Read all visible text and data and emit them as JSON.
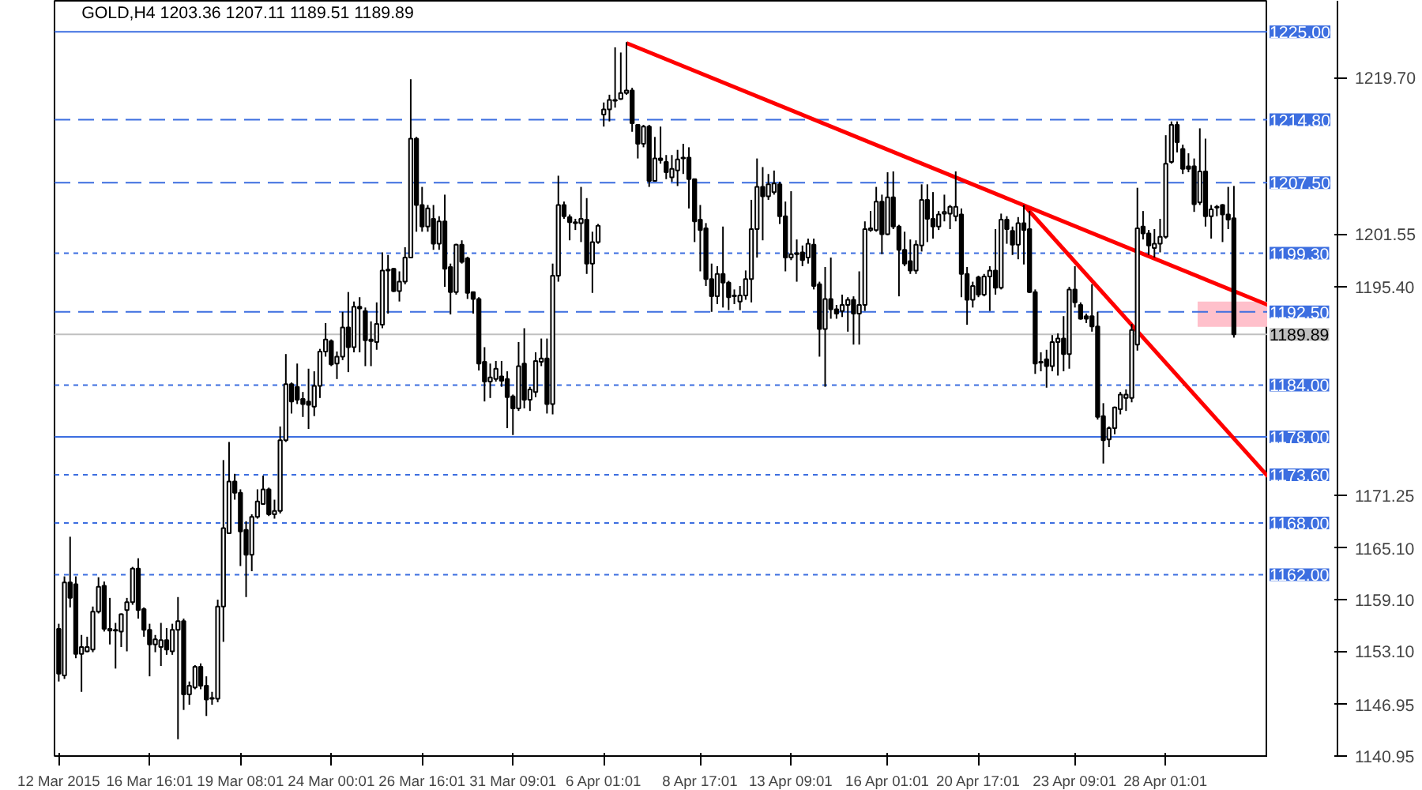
{
  "chart_data": {
    "type": "candlestick",
    "title": "GOLD,H4  1203.36 1207.11 1189.51 1189.89",
    "categories": [
      "12 Mar 2015",
      null,
      null,
      null,
      null,
      null,
      null,
      null,
      null,
      null,
      null,
      null,
      null,
      null,
      null,
      null,
      "16 Mar 16:01",
      null,
      null,
      null,
      null,
      null,
      null,
      null,
      null,
      null,
      null,
      null,
      null,
      null,
      null,
      null,
      "19 Mar 08:01",
      null,
      null,
      null,
      null,
      null,
      null,
      null,
      null,
      null,
      null,
      null,
      null,
      null,
      null,
      null,
      "24 Mar 00:01",
      null,
      null,
      null,
      null,
      null,
      null,
      null,
      null,
      null,
      null,
      null,
      null,
      null,
      null,
      null,
      "26 Mar 16:01",
      null,
      null,
      null,
      null,
      null,
      null,
      null,
      null,
      null,
      null,
      null,
      null,
      null,
      null,
      null,
      "31 Mar 09:01",
      null,
      null,
      null,
      null,
      null,
      null,
      null,
      null,
      null,
      null,
      null,
      null,
      null,
      null,
      null,
      "6 Apr 01:01",
      null,
      null,
      null,
      null,
      null,
      null,
      null,
      null,
      null,
      null,
      null,
      null,
      null,
      null,
      null,
      null,
      "8 Apr 17:01",
      null,
      null,
      null,
      null,
      null,
      null,
      null,
      null,
      null,
      null,
      null,
      null,
      null,
      null,
      null,
      "13 Apr 09:01",
      null,
      null,
      null,
      null,
      null,
      null,
      null,
      null,
      null,
      null,
      null,
      null,
      null,
      null,
      null,
      null,
      "16 Apr 01:01",
      null,
      null,
      null,
      null,
      null,
      null,
      null,
      null,
      null,
      null,
      null,
      null,
      null,
      null,
      null,
      "20 Apr 17:01",
      null,
      null,
      null,
      null,
      null,
      null,
      null,
      null,
      null,
      null,
      null,
      null,
      null,
      null,
      null,
      null,
      "23 Apr 09:01",
      null,
      null,
      null,
      null,
      null,
      null,
      null,
      null,
      null,
      null,
      null,
      null,
      null,
      null,
      null,
      "28 Apr 01:01",
      null,
      null,
      null,
      null,
      null,
      null,
      null,
      null,
      null,
      null,
      null,
      null,
      null,
      null,
      null,
      null,
      null,
      null
    ],
    "ohlc": [
      [
        1155.7,
        1156.3,
        1149.6,
        1150.5
      ],
      [
        1150.3,
        1161.8,
        1149.9,
        1161.1
      ],
      [
        1161.1,
        1166.4,
        1158.2,
        1159.3
      ],
      [
        1160.9,
        1161.8,
        1152.3,
        1152.8
      ],
      [
        1152.8,
        1155.0,
        1148.4,
        1153.6
      ],
      [
        1153.1,
        1154.8,
        1153.0,
        1153.6
      ],
      [
        1153.3,
        1158.3,
        1153.0,
        1157.7
      ],
      [
        1157.7,
        1161.7,
        1157.5,
        1160.6
      ],
      [
        1160.7,
        1161.2,
        1155.4,
        1155.7
      ],
      [
        1155.7,
        1159.3,
        1153.9,
        1155.5
      ],
      [
        1155.5,
        1156.4,
        1151.1,
        1155.6
      ],
      [
        1155.4,
        1157.5,
        1153.6,
        1157.4
      ],
      [
        1157.9,
        1159.3,
        1153.1,
        1158.8
      ],
      [
        1158.8,
        1162.9,
        1158.5,
        1162.7
      ],
      [
        1162.7,
        1163.9,
        1156.9,
        1157.9
      ],
      [
        1158.0,
        1158.2,
        1154.8,
        1155.6
      ],
      [
        1155.6,
        1156.3,
        1150.2,
        1153.9
      ],
      [
        1153.9,
        1155.0,
        1153.0,
        1154.5
      ],
      [
        1153.6,
        1156.4,
        1151.4,
        1154.4
      ],
      [
        1154.4,
        1155.8,
        1152.7,
        1153.3
      ],
      [
        1153.1,
        1156.3,
        1152.7,
        1155.6
      ],
      [
        1155.6,
        1159.4,
        1142.9,
        1156.6
      ],
      [
        1156.6,
        1156.9,
        1146.3,
        1148.1
      ],
      [
        1148.1,
        1149.6,
        1146.9,
        1149.1
      ],
      [
        1148.9,
        1151.5,
        1148.7,
        1151.3
      ],
      [
        1151.3,
        1151.7,
        1148.7,
        1149.1
      ],
      [
        1149.1,
        1150.2,
        1145.6,
        1147.5
      ],
      [
        1147.7,
        1148.4,
        1146.9,
        1147.6
      ],
      [
        1147.6,
        1159.1,
        1147.2,
        1158.3
      ],
      [
        1158.3,
        1175.3,
        1154.2,
        1167.4
      ],
      [
        1166.8,
        1177.4,
        1166.8,
        1172.8
      ],
      [
        1172.8,
        1173.7,
        1170.7,
        1171.5
      ],
      [
        1171.5,
        1171.9,
        1163.0,
        1167.0
      ],
      [
        1167.2,
        1168.2,
        1159.4,
        1164.3
      ],
      [
        1164.3,
        1169.0,
        1162.4,
        1168.7
      ],
      [
        1168.7,
        1171.9,
        1168.5,
        1170.5
      ],
      [
        1170.2,
        1173.5,
        1170.1,
        1171.9
      ],
      [
        1171.9,
        1172.1,
        1168.8,
        1169.0
      ],
      [
        1169.0,
        1170.7,
        1168.5,
        1169.4
      ],
      [
        1169.4,
        1179.2,
        1169.1,
        1177.6
      ],
      [
        1177.6,
        1187.6,
        1177.4,
        1184.1
      ],
      [
        1184.1,
        1184.3,
        1180.7,
        1182.1
      ],
      [
        1183.8,
        1186.5,
        1181.8,
        1182.3
      ],
      [
        1182.4,
        1183.2,
        1180.3,
        1181.8
      ],
      [
        1182.1,
        1185.9,
        1178.9,
        1181.7
      ],
      [
        1181.5,
        1185.6,
        1180.4,
        1183.9
      ],
      [
        1183.9,
        1188.2,
        1182.5,
        1187.9
      ],
      [
        1187.9,
        1191.2,
        1187.3,
        1189.3
      ],
      [
        1189.1,
        1189.3,
        1186.2,
        1186.4
      ],
      [
        1186.5,
        1187.9,
        1184.7,
        1187.3
      ],
      [
        1187.3,
        1192.5,
        1186.9,
        1190.7
      ],
      [
        1190.7,
        1194.8,
        1185.5,
        1188.4
      ],
      [
        1188.4,
        1193.7,
        1187.8,
        1193.1
      ],
      [
        1193.1,
        1194.2,
        1187.8,
        1192.9
      ],
      [
        1192.6,
        1193.0,
        1186.2,
        1189.2
      ],
      [
        1189.3,
        1191.4,
        1186.2,
        1189.1
      ],
      [
        1189.0,
        1193.6,
        1188.1,
        1191.1
      ],
      [
        1191.0,
        1199.4,
        1190.6,
        1197.3
      ],
      [
        1197.3,
        1199.1,
        1192.3,
        1197.4
      ],
      [
        1197.5,
        1197.6,
        1194.8,
        1194.9
      ],
      [
        1194.9,
        1197.2,
        1193.7,
        1196.0
      ],
      [
        1196.0,
        1200.0,
        1195.7,
        1198.8
      ],
      [
        1198.8,
        1219.5,
        1198.8,
        1212.6
      ],
      [
        1212.6,
        1212.8,
        1201.8,
        1204.9
      ],
      [
        1204.9,
        1207.0,
        1201.8,
        1202.4
      ],
      [
        1202.4,
        1204.9,
        1201.8,
        1204.5
      ],
      [
        1203.3,
        1204.9,
        1199.7,
        1200.4
      ],
      [
        1200.4,
        1203.6,
        1199.7,
        1203.0
      ],
      [
        1203.0,
        1206.1,
        1195.4,
        1197.5
      ],
      [
        1197.7,
        1198.1,
        1192.2,
        1194.8
      ],
      [
        1194.8,
        1200.4,
        1194.5,
        1200.3
      ],
      [
        1200.3,
        1200.8,
        1198.1,
        1198.3
      ],
      [
        1198.7,
        1198.9,
        1194.0,
        1194.7
      ],
      [
        1194.8,
        1194.8,
        1192.3,
        1194.0
      ],
      [
        1194.0,
        1194.2,
        1185.7,
        1186.5
      ],
      [
        1186.7,
        1188.4,
        1182.1,
        1184.4
      ],
      [
        1184.4,
        1186.5,
        1182.5,
        1184.9
      ],
      [
        1184.7,
        1186.8,
        1184.4,
        1185.9
      ],
      [
        1185.0,
        1186.8,
        1183.8,
        1184.5
      ],
      [
        1184.7,
        1185.6,
        1179.0,
        1182.6
      ],
      [
        1182.7,
        1182.9,
        1178.2,
        1181.3
      ],
      [
        1181.3,
        1189.0,
        1181.0,
        1186.2
      ],
      [
        1186.5,
        1190.6,
        1181.3,
        1182.3
      ],
      [
        1182.3,
        1183.8,
        1181.0,
        1183.5
      ],
      [
        1183.2,
        1187.8,
        1182.6,
        1186.8
      ],
      [
        1186.7,
        1189.4,
        1186.2,
        1187.1
      ],
      [
        1187.1,
        1189.4,
        1180.7,
        1181.8
      ],
      [
        1181.8,
        1198.1,
        1180.6,
        1196.7
      ],
      [
        1196.7,
        1208.3,
        1196.0,
        1204.9
      ],
      [
        1204.9,
        1205.3,
        1203.3,
        1203.6
      ],
      [
        1203.5,
        1203.8,
        1200.8,
        1202.9
      ],
      [
        1202.9,
        1203.3,
        1202.0,
        1202.8
      ],
      [
        1202.8,
        1207.0,
        1200.6,
        1203.3
      ],
      [
        1203.2,
        1205.7,
        1196.9,
        1198.1
      ],
      [
        1198.1,
        1201.8,
        1194.7,
        1200.6
      ],
      [
        1200.6,
        1202.7,
        1200.4,
        1202.5
      ],
      [
        1215.4,
        1216.8,
        1214.0,
        1216.0
      ],
      [
        1216.0,
        1217.7,
        1214.6,
        1217.1
      ],
      [
        1217.0,
        1223.2,
        1216.2,
        1217.1
      ],
      [
        1217.2,
        1222.6,
        1217.1,
        1217.9
      ],
      [
        1217.9,
        1223.8,
        1217.7,
        1218.2
      ],
      [
        1218.2,
        1218.5,
        1213.4,
        1214.4
      ],
      [
        1214.2,
        1214.3,
        1210.3,
        1212.0
      ],
      [
        1212.0,
        1214.2,
        1211.6,
        1214.0
      ],
      [
        1214.0,
        1214.2,
        1207.0,
        1207.7
      ],
      [
        1207.7,
        1212.8,
        1207.6,
        1210.3
      ],
      [
        1210.3,
        1214.0,
        1209.7,
        1210.1
      ],
      [
        1209.9,
        1210.7,
        1207.9,
        1208.7
      ],
      [
        1208.1,
        1210.7,
        1207.6,
        1209.1
      ],
      [
        1208.9,
        1211.3,
        1207.1,
        1210.2
      ],
      [
        1210.3,
        1212.0,
        1208.5,
        1210.4
      ],
      [
        1210.4,
        1211.6,
        1204.5,
        1207.9
      ],
      [
        1207.9,
        1207.9,
        1200.6,
        1203.0
      ],
      [
        1203.2,
        1204.9,
        1197.2,
        1202.0
      ],
      [
        1202.2,
        1202.8,
        1195.5,
        1196.3
      ],
      [
        1196.3,
        1198.1,
        1192.5,
        1194.3
      ],
      [
        1194.3,
        1197.8,
        1193.4,
        1196.9
      ],
      [
        1196.9,
        1202.4,
        1193.0,
        1195.9
      ],
      [
        1195.9,
        1196.1,
        1192.7,
        1194.2
      ],
      [
        1194.3,
        1195.1,
        1193.4,
        1194.4
      ],
      [
        1193.7,
        1195.5,
        1192.7,
        1194.4
      ],
      [
        1194.4,
        1197.3,
        1193.9,
        1196.3
      ],
      [
        1196.3,
        1205.5,
        1193.6,
        1202.1
      ],
      [
        1202.1,
        1210.3,
        1198.8,
        1207.0
      ],
      [
        1207.0,
        1209.3,
        1200.8,
        1205.9
      ],
      [
        1205.9,
        1208.5,
        1205.5,
        1207.3
      ],
      [
        1206.4,
        1208.9,
        1206.1,
        1207.4
      ],
      [
        1207.3,
        1207.6,
        1202.7,
        1203.6
      ],
      [
        1203.6,
        1205.3,
        1197.2,
        1198.8
      ],
      [
        1198.8,
        1206.5,
        1198.5,
        1199.2
      ],
      [
        1199.2,
        1200.9,
        1196.0,
        1199.3
      ],
      [
        1199.4,
        1200.2,
        1197.8,
        1198.5
      ],
      [
        1198.8,
        1201.0,
        1198.1,
        1200.4
      ],
      [
        1200.3,
        1201.0,
        1195.1,
        1195.5
      ],
      [
        1195.7,
        1196.0,
        1187.3,
        1190.5
      ],
      [
        1190.5,
        1197.7,
        1183.8,
        1194.0
      ],
      [
        1194.0,
        1198.8,
        1191.7,
        1192.8
      ],
      [
        1192.8,
        1193.3,
        1191.7,
        1192.3
      ],
      [
        1192.6,
        1194.5,
        1191.9,
        1193.3
      ],
      [
        1193.3,
        1194.2,
        1190.2,
        1193.9
      ],
      [
        1193.9,
        1194.3,
        1188.7,
        1192.3
      ],
      [
        1192.3,
        1197.2,
        1188.7,
        1193.3
      ],
      [
        1193.3,
        1203.0,
        1192.6,
        1202.1
      ],
      [
        1202.0,
        1204.2,
        1201.8,
        1202.2
      ],
      [
        1202.0,
        1207.0,
        1201.8,
        1205.3
      ],
      [
        1205.3,
        1206.1,
        1199.2,
        1201.5
      ],
      [
        1201.5,
        1208.7,
        1201.4,
        1205.8
      ],
      [
        1205.8,
        1208.8,
        1202.1,
        1202.4
      ],
      [
        1202.4,
        1202.6,
        1194.3,
        1199.7
      ],
      [
        1199.7,
        1201.8,
        1197.8,
        1198.1
      ],
      [
        1198.4,
        1200.9,
        1196.9,
        1197.3
      ],
      [
        1197.3,
        1200.8,
        1196.9,
        1200.3
      ],
      [
        1200.2,
        1207.3,
        1199.5,
        1205.5
      ],
      [
        1205.5,
        1207.3,
        1200.6,
        1203.3
      ],
      [
        1203.3,
        1206.4,
        1201.0,
        1202.4
      ],
      [
        1202.4,
        1204.2,
        1202.0,
        1203.8
      ],
      [
        1203.9,
        1206.1,
        1203.0,
        1204.1
      ],
      [
        1203.9,
        1204.9,
        1202.1,
        1204.7
      ],
      [
        1203.6,
        1208.8,
        1203.0,
        1204.7
      ],
      [
        1203.8,
        1204.5,
        1194.2,
        1196.9
      ],
      [
        1196.9,
        1197.7,
        1191.0,
        1193.9
      ],
      [
        1193.9,
        1196.0,
        1193.0,
        1195.5
      ],
      [
        1196.5,
        1196.7,
        1194.2,
        1194.5
      ],
      [
        1194.5,
        1196.9,
        1194.3,
        1196.6
      ],
      [
        1196.6,
        1197.8,
        1192.6,
        1197.3
      ],
      [
        1197.3,
        1202.1,
        1194.5,
        1195.3
      ],
      [
        1195.3,
        1203.9,
        1195.1,
        1203.2
      ],
      [
        1203.2,
        1203.6,
        1200.4,
        1202.1
      ],
      [
        1201.9,
        1202.4,
        1199.1,
        1200.3
      ],
      [
        1200.3,
        1203.5,
        1198.6,
        1202.8
      ],
      [
        1202.8,
        1204.9,
        1198.0,
        1202.0
      ],
      [
        1202.1,
        1204.2,
        1194.7,
        1194.8
      ],
      [
        1194.8,
        1195.1,
        1185.3,
        1186.5
      ],
      [
        1186.6,
        1187.8,
        1185.6,
        1186.7
      ],
      [
        1187.0,
        1188.1,
        1183.7,
        1186.2
      ],
      [
        1186.2,
        1189.8,
        1185.6,
        1189.0
      ],
      [
        1189.0,
        1190.0,
        1185.1,
        1189.4
      ],
      [
        1189.4,
        1192.0,
        1185.6,
        1187.6
      ],
      [
        1187.6,
        1195.4,
        1185.9,
        1195.1
      ],
      [
        1195.1,
        1197.8,
        1193.0,
        1193.6
      ],
      [
        1193.3,
        1193.6,
        1191.6,
        1191.7
      ],
      [
        1192.0,
        1192.3,
        1191.2,
        1191.7
      ],
      [
        1192.0,
        1195.7,
        1190.2,
        1190.8
      ],
      [
        1190.8,
        1192.5,
        1180.0,
        1180.3
      ],
      [
        1180.4,
        1181.9,
        1174.9,
        1177.6
      ],
      [
        1177.7,
        1179.2,
        1176.8,
        1179.0
      ],
      [
        1179.0,
        1181.5,
        1178.3,
        1181.4
      ],
      [
        1181.2,
        1183.2,
        1180.6,
        1182.9
      ],
      [
        1182.5,
        1183.5,
        1181.0,
        1182.9
      ],
      [
        1182.5,
        1191.1,
        1182.0,
        1190.4
      ],
      [
        1188.7,
        1206.9,
        1188.0,
        1202.2
      ],
      [
        1202.4,
        1204.2,
        1200.9,
        1201.6
      ],
      [
        1201.6,
        1202.0,
        1199.1,
        1200.2
      ],
      [
        1199.9,
        1202.1,
        1198.8,
        1200.4
      ],
      [
        1200.4,
        1203.3,
        1199.4,
        1201.2
      ],
      [
        1201.2,
        1213.0,
        1201.0,
        1209.7
      ],
      [
        1209.9,
        1214.6,
        1209.7,
        1214.2
      ],
      [
        1214.2,
        1214.6,
        1211.0,
        1212.2
      ],
      [
        1211.4,
        1211.9,
        1208.5,
        1209.1
      ],
      [
        1209.4,
        1210.9,
        1208.7,
        1209.1
      ],
      [
        1209.4,
        1210.3,
        1204.1,
        1205.0
      ],
      [
        1205.2,
        1213.8,
        1204.9,
        1208.8
      ],
      [
        1208.8,
        1212.6,
        1202.4,
        1203.6
      ],
      [
        1203.6,
        1204.9,
        1201.0,
        1204.4
      ],
      [
        1204.6,
        1204.9,
        1203.6,
        1204.7
      ],
      [
        1204.9,
        1205.0,
        1200.6,
        1203.8
      ],
      [
        1203.8,
        1207.0,
        1202.1,
        1203.2
      ],
      [
        1203.36,
        1207.11,
        1189.51,
        1189.89
      ],
      null,
      null,
      null,
      null,
      null,
      null
    ],
    "series": [
      {
        "type": "line",
        "color": "#ff0000",
        "values": [
          null,
          null,
          null,
          null,
          null,
          null,
          null,
          null,
          null,
          null,
          null,
          null,
          null,
          null,
          null,
          null,
          null,
          null,
          null,
          null,
          null,
          null,
          null,
          null,
          null,
          null,
          null,
          null,
          null,
          null,
          null,
          null,
          null,
          null,
          null,
          null,
          null,
          null,
          null,
          null,
          null,
          null,
          null,
          null,
          null,
          null,
          null,
          null,
          null,
          null,
          null,
          null,
          null,
          null,
          null,
          null,
          null,
          null,
          null,
          null,
          null,
          null,
          null,
          null,
          null,
          null,
          null,
          null,
          null,
          null,
          null,
          null,
          null,
          null,
          null,
          null,
          null,
          null,
          null,
          null,
          null,
          null,
          null,
          null,
          null,
          null,
          null,
          null,
          null,
          null,
          null,
          null,
          null,
          null,
          null,
          null,
          null,
          null,
          null,
          null,
          1223.7,
          null,
          null,
          null,
          null,
          null,
          null,
          null,
          null,
          null,
          null,
          null,
          null,
          null,
          null,
          null,
          null,
          null,
          null,
          null,
          null,
          null,
          null,
          null,
          null,
          null,
          null,
          null,
          null,
          null,
          null,
          null,
          null,
          null,
          null,
          null,
          null,
          null,
          null,
          null,
          null,
          null,
          null,
          null,
          null,
          null,
          null,
          null,
          null,
          null,
          null,
          null,
          null,
          null,
          null,
          null,
          null,
          null,
          null,
          null,
          null,
          null,
          null,
          null,
          null,
          null,
          null,
          null,
          null,
          null,
          null,
          null,
          null,
          null,
          null,
          null,
          null,
          null,
          null,
          null,
          null,
          null,
          null,
          null,
          null,
          null,
          null,
          null,
          null,
          null,
          null,
          null,
          null,
          null,
          null,
          null,
          null,
          null,
          null,
          null,
          null,
          null,
          null,
          null,
          null,
          null,
          null,
          null,
          null,
          null,
          null,
          null,
          null,
          1193.3
        ]
      },
      {
        "type": "line",
        "color": "#ff0000",
        "values": [
          null,
          null,
          null,
          null,
          null,
          null,
          null,
          null,
          null,
          null,
          null,
          null,
          null,
          null,
          null,
          null,
          null,
          null,
          null,
          null,
          null,
          null,
          null,
          null,
          null,
          null,
          null,
          null,
          null,
          null,
          null,
          null,
          null,
          null,
          null,
          null,
          null,
          null,
          null,
          null,
          null,
          null,
          null,
          null,
          null,
          null,
          null,
          null,
          null,
          null,
          null,
          null,
          null,
          null,
          null,
          null,
          null,
          null,
          null,
          null,
          null,
          null,
          null,
          null,
          null,
          null,
          null,
          null,
          null,
          null,
          null,
          null,
          null,
          null,
          null,
          null,
          null,
          null,
          null,
          null,
          null,
          null,
          null,
          null,
          null,
          null,
          null,
          null,
          null,
          null,
          null,
          null,
          null,
          null,
          null,
          null,
          null,
          null,
          null,
          null,
          null,
          null,
          null,
          null,
          null,
          null,
          null,
          null,
          null,
          null,
          null,
          null,
          null,
          null,
          null,
          null,
          null,
          null,
          null,
          null,
          null,
          null,
          null,
          null,
          null,
          null,
          null,
          null,
          null,
          null,
          null,
          null,
          null,
          null,
          null,
          null,
          null,
          null,
          null,
          null,
          null,
          null,
          null,
          null,
          null,
          null,
          null,
          null,
          null,
          null,
          null,
          null,
          null,
          null,
          null,
          null,
          null,
          null,
          null,
          null,
          null,
          null,
          null,
          null,
          null,
          null,
          null,
          null,
          null,
          null,
          1204.9,
          null,
          null,
          null,
          null,
          null,
          null,
          null,
          null,
          null,
          null,
          null,
          null,
          null,
          null,
          null,
          null,
          null,
          null,
          null,
          null,
          null,
          null,
          null,
          null,
          null,
          null,
          null,
          null,
          null,
          null,
          null,
          null,
          null,
          null,
          null,
          null,
          null,
          null,
          null,
          null,
          null,
          null,
          1173.4
        ]
      }
    ],
    "ylim": [
      1140.95,
      1228.6
    ],
    "yticks": [
      {
        "value": 1140.95,
        "label": "1140.95"
      },
      {
        "value": 1146.95,
        "label": "1146.95"
      },
      {
        "value": 1153.1,
        "label": "1153.10"
      },
      {
        "value": 1159.1,
        "label": "1159.10"
      },
      {
        "value": 1165.1,
        "label": "1165.10"
      },
      {
        "value": 1171.25,
        "label": "1171.25"
      },
      {
        "value": 1195.4,
        "label": "1195.40"
      },
      {
        "value": 1201.55,
        "label": "1201.55"
      },
      {
        "value": 1219.7,
        "label": "1219.70"
      }
    ],
    "ref_lines": [
      {
        "axis": "y",
        "value": 1225.0,
        "label": "1225.00",
        "color": "#3c6ee0",
        "line_style": "solid"
      },
      {
        "axis": "y",
        "value": 1214.8,
        "label": "1214.80",
        "color": "#3c6ee0",
        "line_style": "dashed"
      },
      {
        "axis": "y",
        "value": 1207.5,
        "label": "1207.50",
        "color": "#3c6ee0",
        "line_style": "dashed"
      },
      {
        "axis": "y",
        "value": 1199.3,
        "label": "1199.30",
        "color": "#3c6ee0",
        "line_style": "dotted"
      },
      {
        "axis": "y",
        "value": 1192.5,
        "label": "1192.50",
        "color": "#3c6ee0",
        "line_style": "dashed"
      },
      {
        "axis": "y",
        "value": 1189.89,
        "label": "1189.89",
        "color": "#c0c0c0",
        "line_style": "solid"
      },
      {
        "axis": "y",
        "value": 1184.0,
        "label": "1184.00",
        "color": "#3c6ee0",
        "line_style": "dotted"
      },
      {
        "axis": "y",
        "value": 1178.0,
        "label": "1178.00",
        "color": "#3c6ee0",
        "line_style": "solid"
      },
      {
        "axis": "y",
        "value": 1173.6,
        "label": "1173.60",
        "color": "#3c6ee0",
        "line_style": "dotted"
      },
      {
        "axis": "y",
        "value": 1168.0,
        "label": "1168.00",
        "color": "#3c6ee0",
        "line_style": "dotted"
      },
      {
        "axis": "y",
        "value": 1162.0,
        "label": "1162.00",
        "color": "#3c6ee0",
        "line_style": "dotted"
      }
    ],
    "bands": [
      {
        "axis": "y",
        "from": 1190.75,
        "to": 1193.7,
        "color": "#ffc0cb"
      }
    ],
    "grid": false
  }
}
